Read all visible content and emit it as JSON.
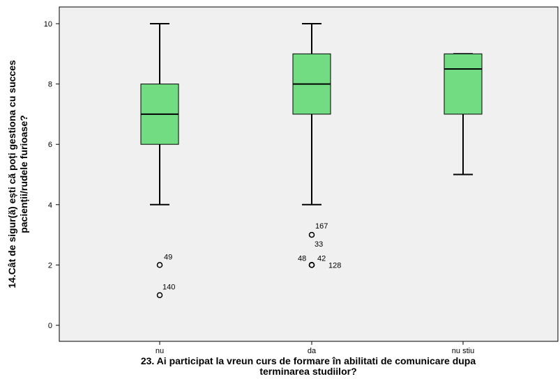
{
  "chart_data": {
    "type": "boxplot",
    "title": "",
    "xlabel_lines": [
      "23. Ai participat la vreun curs de formare în abilitati de comunicare dupa",
      "terminarea studiilor?"
    ],
    "ylabel_lines": [
      "14.Cât de sigur(ă) ești că poți gestiona cu succes",
      "pacienții/rudele furioase?"
    ],
    "ylim": [
      -0.3,
      10.6
    ],
    "yticks": [
      0,
      2,
      4,
      6,
      8,
      10
    ],
    "categories": [
      "nu",
      "da",
      "nu stiu"
    ],
    "boxes": [
      {
        "category": "nu",
        "whisker_low": 4,
        "q1": 6,
        "median": 7,
        "q3": 8,
        "whisker_high": 10,
        "outliers": [
          {
            "value": 2,
            "label": "49"
          },
          {
            "value": 1,
            "label": "140"
          }
        ]
      },
      {
        "category": "da",
        "whisker_low": 4,
        "q1": 7,
        "median": 8,
        "q3": 9,
        "whisker_high": 10,
        "outliers": [
          {
            "value": 3,
            "label": "167"
          },
          {
            "value": 2,
            "label": "48"
          },
          {
            "value": 2,
            "label": "42"
          },
          {
            "value": 2,
            "label": "128"
          }
        ],
        "extra_labels": [
          {
            "value": 3,
            "label": "33"
          }
        ]
      },
      {
        "category": "nu stiu",
        "whisker_low": 5,
        "q1": 7,
        "median": 8.5,
        "q3": 9,
        "whisker_high": 9,
        "outliers": []
      }
    ],
    "grid": false,
    "colors": {
      "box_fill": "#72dc82",
      "plot_bg": "#f0f0f0",
      "line": "#000000"
    }
  }
}
